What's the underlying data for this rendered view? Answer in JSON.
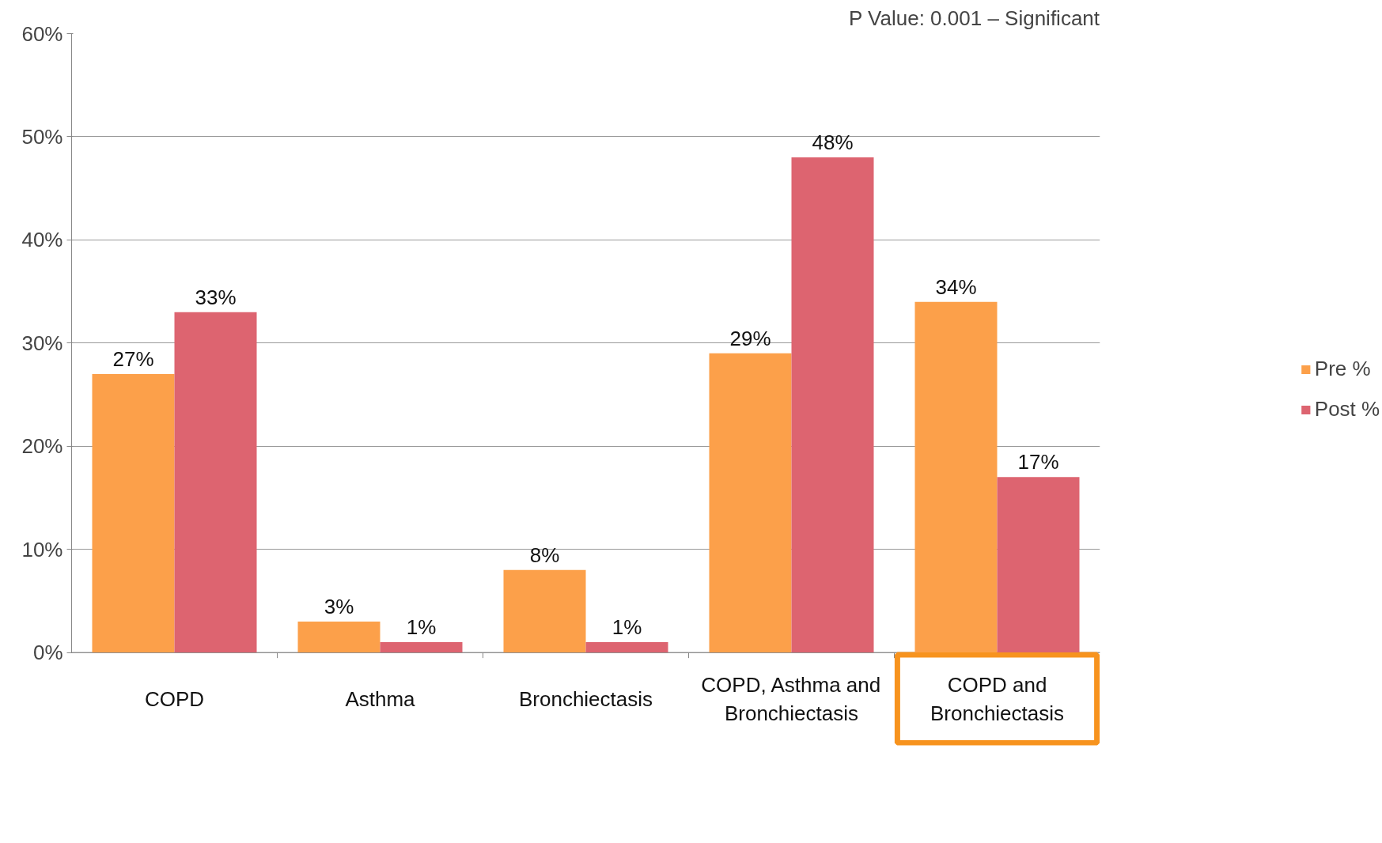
{
  "chart_data": {
    "type": "bar",
    "annotations": [
      "P Value: 0.001 – Significant"
    ],
    "categories": [
      "COPD",
      "Asthma",
      "Bronchiectasis",
      "COPD, Asthma and Bronchiectasis",
      "COPD and Bronchiectasis"
    ],
    "series": [
      {
        "name": "Pre %",
        "color": "#fca04a",
        "values": [
          27,
          3,
          8,
          29,
          34
        ],
        "value_labels": [
          "27%",
          "3%",
          "8%",
          "29%",
          "34%"
        ]
      },
      {
        "name": "Post %",
        "color": "#dd6470",
        "values": [
          33,
          1,
          1,
          48,
          17
        ],
        "value_labels": [
          "33%",
          "1%",
          "1%",
          "48%",
          "17%"
        ]
      }
    ],
    "ylim": [
      0,
      60
    ],
    "yticks": [
      {
        "value": 0,
        "label": "0%"
      },
      {
        "value": 10,
        "label": "10%"
      },
      {
        "value": 20,
        "label": "20%"
      },
      {
        "value": 30,
        "label": "30%"
      },
      {
        "value": 40,
        "label": "40%"
      },
      {
        "value": 50,
        "label": "50%"
      },
      {
        "value": 60,
        "label": "60%"
      }
    ],
    "grid": "y",
    "legend": "right"
  }
}
